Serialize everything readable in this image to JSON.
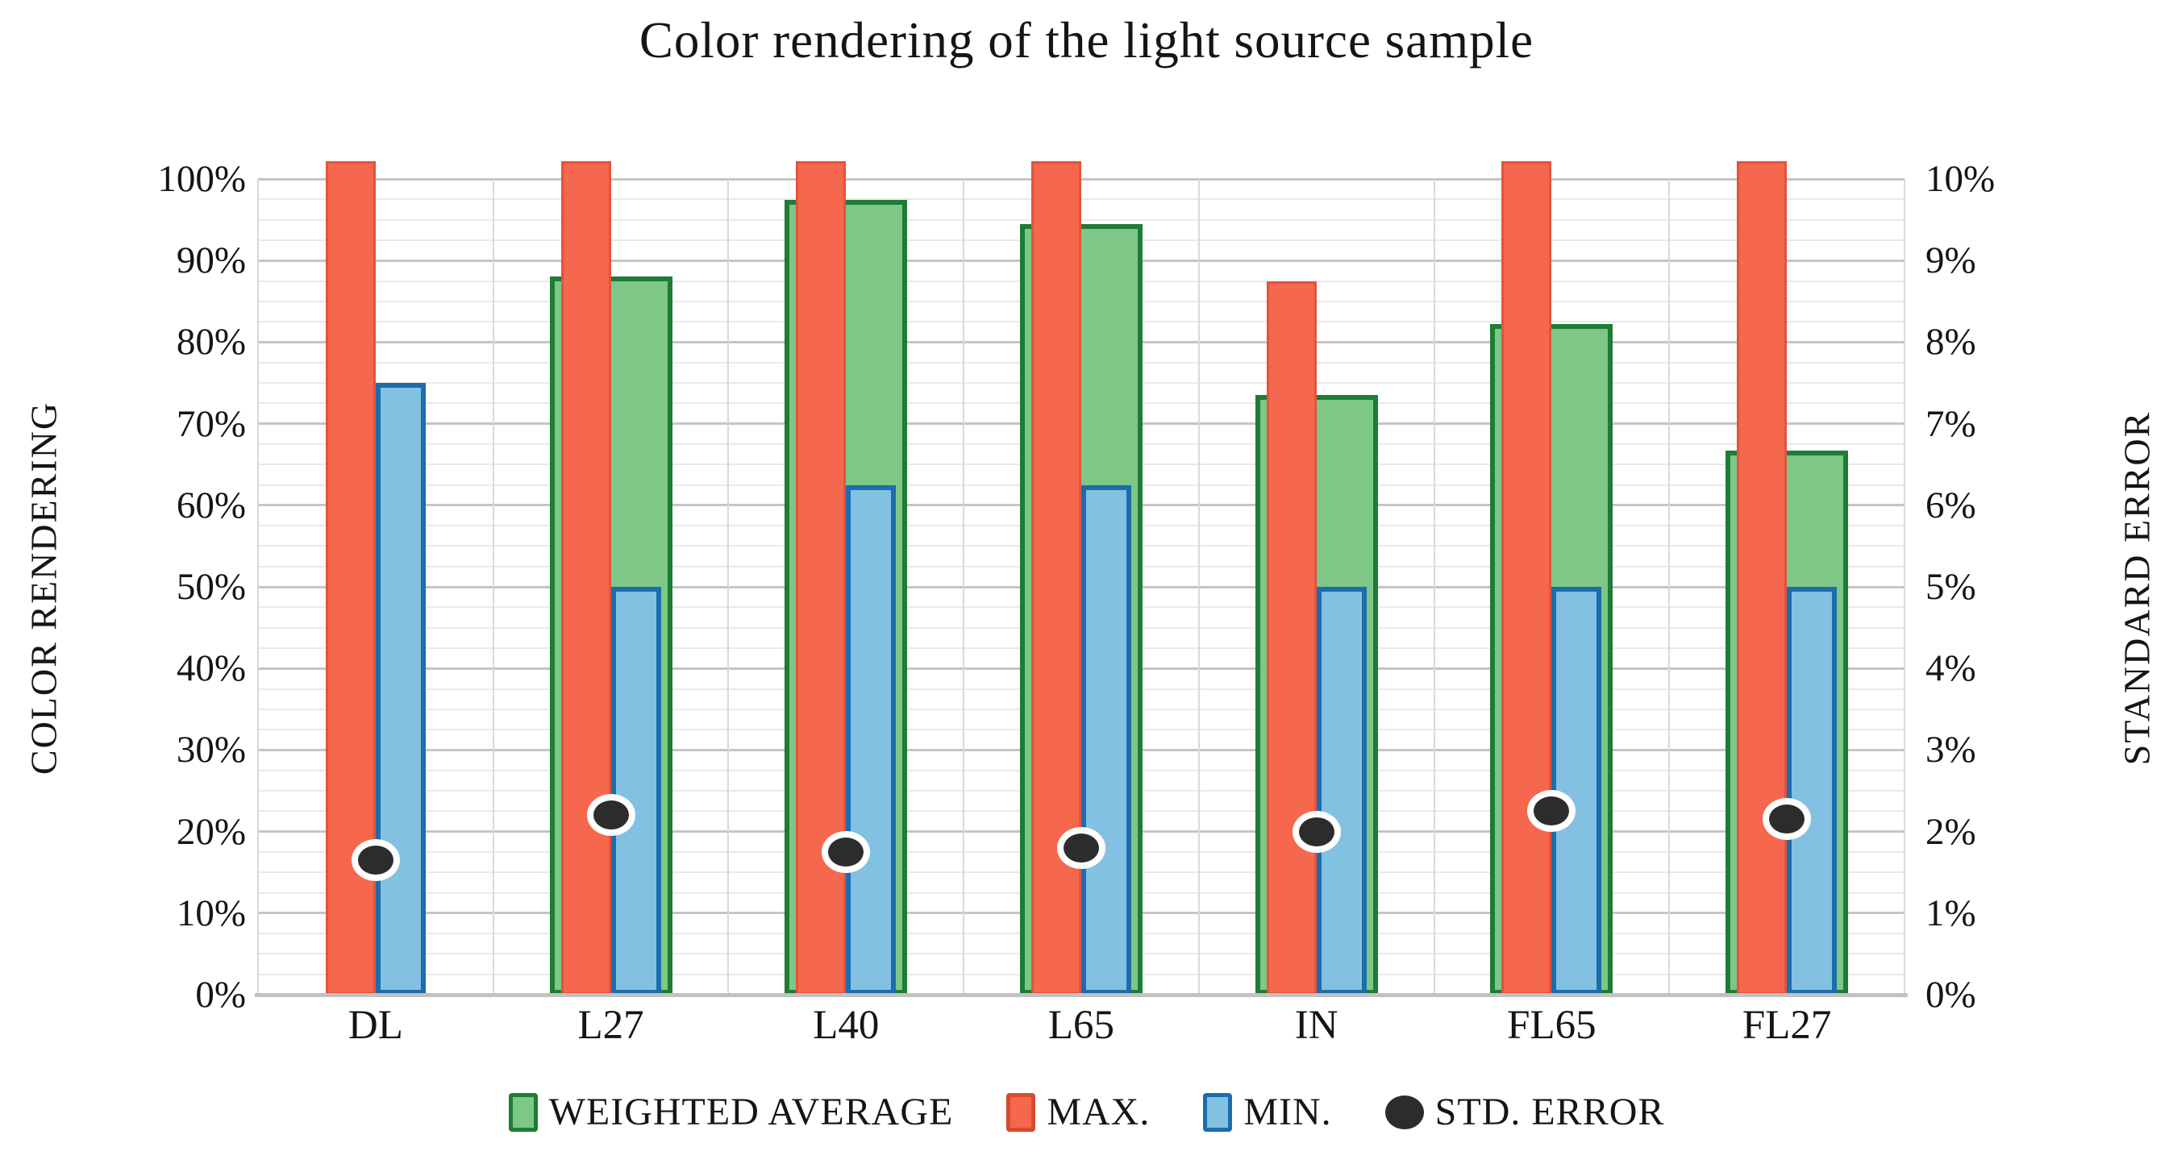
{
  "title": "Color rendering of the light source sample",
  "left_axis": {
    "title": "COLOR RENDERING",
    "ticks": [
      "100%",
      "90%",
      "80%",
      "70%",
      "60%",
      "50%",
      "40%",
      "30%",
      "20%",
      "10%",
      "0%"
    ]
  },
  "right_axis": {
    "title": "STANDARD ERROR",
    "ticks": [
      "10%",
      "9%",
      "8%",
      "7%",
      "6%",
      "5%",
      "4%",
      "3%",
      "2%",
      "1%",
      "0%"
    ]
  },
  "legend": [
    {
      "label": "WEIGHTED AVERAGE",
      "swatch": "square",
      "fill": "#7dc787",
      "border": "#1e7c35"
    },
    {
      "label": "MAX.",
      "swatch": "square",
      "fill": "#f5684d",
      "border": "#d8492f"
    },
    {
      "label": "MIN.",
      "swatch": "square",
      "fill": "#83c1e2",
      "border": "#1d6cab"
    },
    {
      "label": "STD. ERROR",
      "swatch": "circle",
      "fill": "#2c2c2c",
      "border": "#2c2c2c"
    }
  ],
  "chart_data": {
    "type": "bar",
    "subtype": "grouped-overlap-combo",
    "title": "Color rendering of the light source sample",
    "categories": [
      "DL",
      "L27",
      "L40",
      "L65",
      "IN",
      "FL65",
      "FL27"
    ],
    "series": [
      {
        "name": "WEIGHTED AVERAGE",
        "type": "bar",
        "axis": "left",
        "fill": "#7dc787",
        "border": "#1e7c35",
        "values": [
          null,
          88,
          97.4,
          94.5,
          73.5,
          82.2,
          66.7
        ]
      },
      {
        "name": "MAX.",
        "type": "bar",
        "axis": "left",
        "fill": "#f5684d",
        "border": "#e4533a",
        "values": [
          100,
          100,
          100,
          100,
          87.5,
          100,
          100
        ]
      },
      {
        "name": "MIN.",
        "type": "bar",
        "axis": "left",
        "fill": "#83c1e2",
        "border": "#1d6cab",
        "values": [
          75,
          50,
          62.5,
          62.5,
          50,
          50,
          50
        ]
      },
      {
        "name": "STD. ERROR",
        "type": "scatter",
        "axis": "right",
        "fill": "#2c2c2c",
        "border": "#ffffff",
        "values": [
          1.65,
          2.2,
          1.75,
          1.8,
          2.0,
          2.25,
          2.15
        ]
      }
    ],
    "left_axis": {
      "label": "COLOR RENDERING",
      "min": 0,
      "max": 100,
      "major_step": 10,
      "minor_step": 2.5,
      "tick_format": "percent"
    },
    "right_axis": {
      "label": "STANDARD ERROR",
      "min": 0,
      "max": 10,
      "major_step": 1,
      "tick_format": "percent"
    },
    "grid": {
      "horizontal_major": true,
      "horizontal_minor": true,
      "vertical_slot_lines": true
    },
    "legend_position": "bottom"
  }
}
